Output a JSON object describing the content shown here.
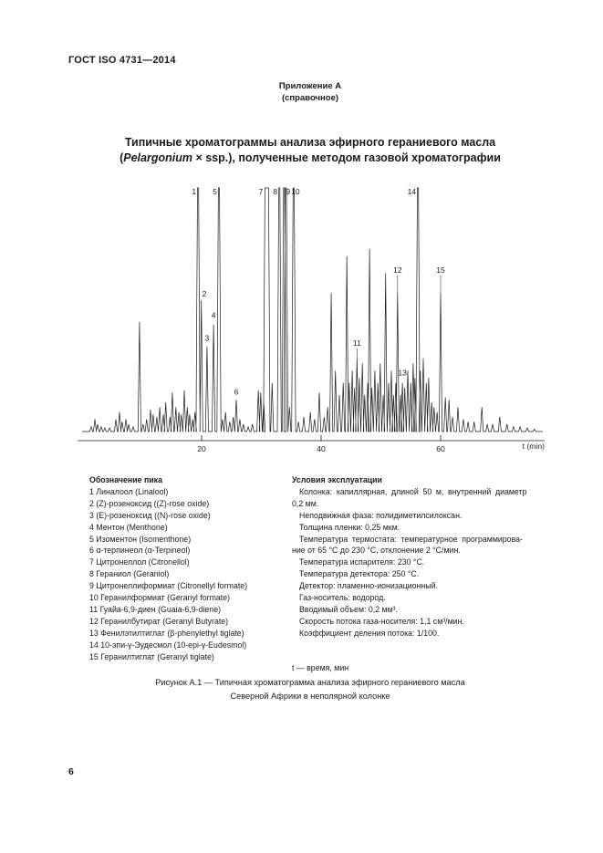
{
  "page": {
    "standard": "ГОСТ ISO 4731—2014",
    "page_number": "6"
  },
  "annex": {
    "title": "Приложение А",
    "subtitle": "(справочное)"
  },
  "title": {
    "line1": "Типичные хроматограммы анализа эфирного гераниевого масла",
    "line2_prefix": "(",
    "line2_italic": "Pelargonium",
    "line2_rest": " × ssp.), полученные методом газовой хроматографии"
  },
  "chart_data": {
    "type": "line",
    "kind": "gas-chromatogram",
    "xlabel": "t (min)",
    "x_ticks": [
      20,
      40,
      60
    ],
    "x_range": [
      0,
      77
    ],
    "grid": false,
    "peaks": [
      {
        "n": 1,
        "name": "Линалоол (Linalool)",
        "t": 19.4,
        "h": 1.0
      },
      {
        "n": 2,
        "name": "(Z)-розеноксид ((Z)-rose oxide)",
        "t": 19.95,
        "h": 0.54
      },
      {
        "n": 3,
        "name": "(Е)-розеноксид ((N)-rose oxide)",
        "t": 20.9,
        "h": 0.35
      },
      {
        "n": 4,
        "name": "Ментон (Menthone)",
        "t": 22.0,
        "h": 0.44
      },
      {
        "n": 5,
        "name": "Изоментон (Isomenthone)",
        "t": 22.9,
        "h": 1.0
      },
      {
        "n": 6,
        "name": "α-терпинеол (α-Terpineol)",
        "t": 25.8,
        "h": 0.13
      },
      {
        "n": 7,
        "name": "Цитронеллол (Citronellol)",
        "t": 30.9,
        "h": 1.0,
        "wide": true
      },
      {
        "n": 8,
        "name": "Гераниол (Geraniol)",
        "t": 33.0,
        "h": 1.0
      },
      {
        "n": 9,
        "name": "Цитронеллиформиат (Citronellyl formate)",
        "t": 33.8,
        "h": 1.0
      },
      {
        "n": 10,
        "name": "Геранилформиат (Geranyl formate)",
        "t": 35.4,
        "h": 1.0
      },
      {
        "n": 11,
        "name": "Гуайа-6,9-диен (Guaia-6,9-diene)",
        "t": 46.0,
        "h": 0.3
      },
      {
        "n": 12,
        "name": "Геранилбутират (Geranyl Butyrate)",
        "t": 52.8,
        "h": 0.57
      },
      {
        "n": 13,
        "name": "Фенилэтилтиглат (β-phenylethyl tiglate)",
        "t": 53.6,
        "h": 0.2
      },
      {
        "n": 14,
        "name": "10-эпи-γ-Эудесмол (10-epi-γ-Eudesmol)",
        "t": 56.2,
        "h": 0.97
      },
      {
        "n": 15,
        "name": "Геранилтиглат (Geranyl tiglate)",
        "t": 60.0,
        "h": 0.57
      }
    ],
    "minor_peaks": [
      [
        1.53,
        0.02
      ],
      [
        2.14,
        0.05
      ],
      [
        2.6,
        0.03
      ],
      [
        3.2,
        0.02
      ],
      [
        3.8,
        0.015
      ],
      [
        4.6,
        0.015
      ],
      [
        5.65,
        0.05
      ],
      [
        6.26,
        0.08
      ],
      [
        6.7,
        0.04
      ],
      [
        7.33,
        0.05
      ],
      [
        7.8,
        0.03
      ],
      [
        8.55,
        0.02
      ],
      [
        9.6,
        0.45
      ],
      [
        10.2,
        0.03
      ],
      [
        10.8,
        0.05
      ],
      [
        11.45,
        0.09
      ],
      [
        11.9,
        0.07
      ],
      [
        12.5,
        0.06
      ],
      [
        13.0,
        0.1
      ],
      [
        13.6,
        0.07
      ],
      [
        14.0,
        0.12
      ],
      [
        14.7,
        0.06
      ],
      [
        15.1,
        0.16
      ],
      [
        15.7,
        0.1
      ],
      [
        16.2,
        0.08
      ],
      [
        16.6,
        0.07
      ],
      [
        17.1,
        0.17
      ],
      [
        17.6,
        0.1
      ],
      [
        18.0,
        0.07
      ],
      [
        18.5,
        0.05
      ],
      [
        18.9,
        0.08
      ],
      [
        23.5,
        0.05
      ],
      [
        24.0,
        0.08
      ],
      [
        24.7,
        0.04
      ],
      [
        25.3,
        0.06
      ],
      [
        26.4,
        0.05
      ],
      [
        27.0,
        0.03
      ],
      [
        27.8,
        0.02
      ],
      [
        28.5,
        0.03
      ],
      [
        29.5,
        0.17
      ],
      [
        29.9,
        0.16
      ],
      [
        30.4,
        0.12
      ],
      [
        31.8,
        0.2
      ],
      [
        34.1,
        1.0
      ],
      [
        34.7,
        0.1
      ],
      [
        36.2,
        0.04
      ],
      [
        37.1,
        0.06
      ],
      [
        38.2,
        0.08
      ],
      [
        38.9,
        0.05
      ],
      [
        39.7,
        0.16
      ],
      [
        40.5,
        0.06
      ],
      [
        41.1,
        0.1
      ],
      [
        41.7,
        0.57
      ],
      [
        42.4,
        0.25
      ],
      [
        43.05,
        0.15
      ],
      [
        43.7,
        0.2
      ],
      [
        44.3,
        0.72
      ],
      [
        44.7,
        0.2
      ],
      [
        45.2,
        0.25
      ],
      [
        45.6,
        0.18
      ],
      [
        46.4,
        0.22
      ],
      [
        46.9,
        0.28
      ],
      [
        47.3,
        0.15
      ],
      [
        47.8,
        0.2
      ],
      [
        48.1,
        0.75
      ],
      [
        48.5,
        0.18
      ],
      [
        49.0,
        0.25
      ],
      [
        49.5,
        0.2
      ],
      [
        49.9,
        0.28
      ],
      [
        50.4,
        0.15
      ],
      [
        50.8,
        0.65
      ],
      [
        51.3,
        0.2
      ],
      [
        51.75,
        0.25
      ],
      [
        52.1,
        0.15
      ],
      [
        52.5,
        0.2
      ],
      [
        53.3,
        0.15
      ],
      [
        54.0,
        0.18
      ],
      [
        54.5,
        0.25
      ],
      [
        55.0,
        0.2
      ],
      [
        55.4,
        0.28
      ],
      [
        55.7,
        0.22
      ],
      [
        56.6,
        0.25
      ],
      [
        57.1,
        0.3
      ],
      [
        57.6,
        0.2
      ],
      [
        58.0,
        0.22
      ],
      [
        58.5,
        0.12
      ],
      [
        58.9,
        0.1
      ],
      [
        59.4,
        0.08
      ],
      [
        60.8,
        0.14
      ],
      [
        61.4,
        0.13
      ],
      [
        62.0,
        0.06
      ],
      [
        62.9,
        0.1
      ],
      [
        63.8,
        0.05
      ],
      [
        64.6,
        0.04
      ],
      [
        65.6,
        0.04
      ],
      [
        66.9,
        0.1
      ],
      [
        67.8,
        0.03
      ],
      [
        68.7,
        0.03
      ],
      [
        69.9,
        0.06
      ],
      [
        71.1,
        0.03
      ],
      [
        72.2,
        0.02
      ],
      [
        73.3,
        0.02
      ],
      [
        74.5,
        0.015
      ],
      [
        75.7,
        0.01
      ]
    ]
  },
  "legend": {
    "header": "Обозначение пика",
    "items": [
      "1 Линалоол (Linalool)",
      "2 (Z)-розеноксид ((Z)-rose oxide)",
      "3 (Е)-розеноксид ((N)-rose oxide)",
      "4 Ментон (Menthone)",
      "5 Изоментон (Isomenthone)",
      "6 α-терпинеол (α-Terpineol)",
      "7 Цитронеллол (Citronellol)",
      "8 Гераниол (Geraniol)",
      "9 Цитронеллиформиат (Citronellyl formate)",
      "10 Геранилформиат (Geranyl formate)",
      "11 Гуайа-6,9-диен (Guaia-6,9-diene)",
      "12 Геранилбутират (Geranyl Butyrate)",
      "13 Фенилэтилтиглат (β-phenylethyl tiglate)",
      "14 10-эпи-γ-Эудесмол (10-epi-γ-Eudesmol)",
      "15 Геранилтиглат (Geranyl tiglate)"
    ]
  },
  "conditions": {
    "header": "Условия эксплуатации",
    "lines": [
      {
        "text": "Колонка: капиллярная, длиной 50 м, внутренний диаметр",
        "indent": true,
        "stretch": true
      },
      {
        "text": "0,2 мм.",
        "indent": false,
        "stretch": false
      },
      {
        "text": "Неподвижная фаза: полидиметилсилоксан.",
        "indent": true,
        "stretch": false
      },
      {
        "text": "Толщина пленки: 0,25 мкм.",
        "indent": true,
        "stretch": false
      },
      {
        "text": "Температура термостата: температурное программирова-",
        "indent": true,
        "stretch": true
      },
      {
        "text": "ние от 65 °С до 230 °С, отклонение 2 °С/мин.",
        "indent": false,
        "stretch": false
      },
      {
        "text": "Температура испарителя: 230 °С.",
        "indent": true,
        "stretch": false
      },
      {
        "text": "Температура детектора: 250 °С.",
        "indent": true,
        "stretch": false
      },
      {
        "text": "Детектор: пламенно-ионизационный.",
        "indent": true,
        "stretch": false
      },
      {
        "text": "Газ-носитель: водород.",
        "indent": true,
        "stretch": false
      },
      {
        "text": "Вводимый объем: 0,2 мм³.",
        "indent": true,
        "stretch": false
      },
      {
        "text": "Скорость потока газа-носителя: 1,1 см³/мин.",
        "indent": true,
        "stretch": false
      },
      {
        "text": "Коэффициент деления потока: 1/100.",
        "indent": true,
        "stretch": false
      }
    ],
    "time_note": "t — время, мин"
  },
  "caption": {
    "line1": "Рисунок А.1 — Типичная хроматограмма анализа эфирного гераниевого масла",
    "line2": "Северной Африки в неполярной колонке"
  }
}
